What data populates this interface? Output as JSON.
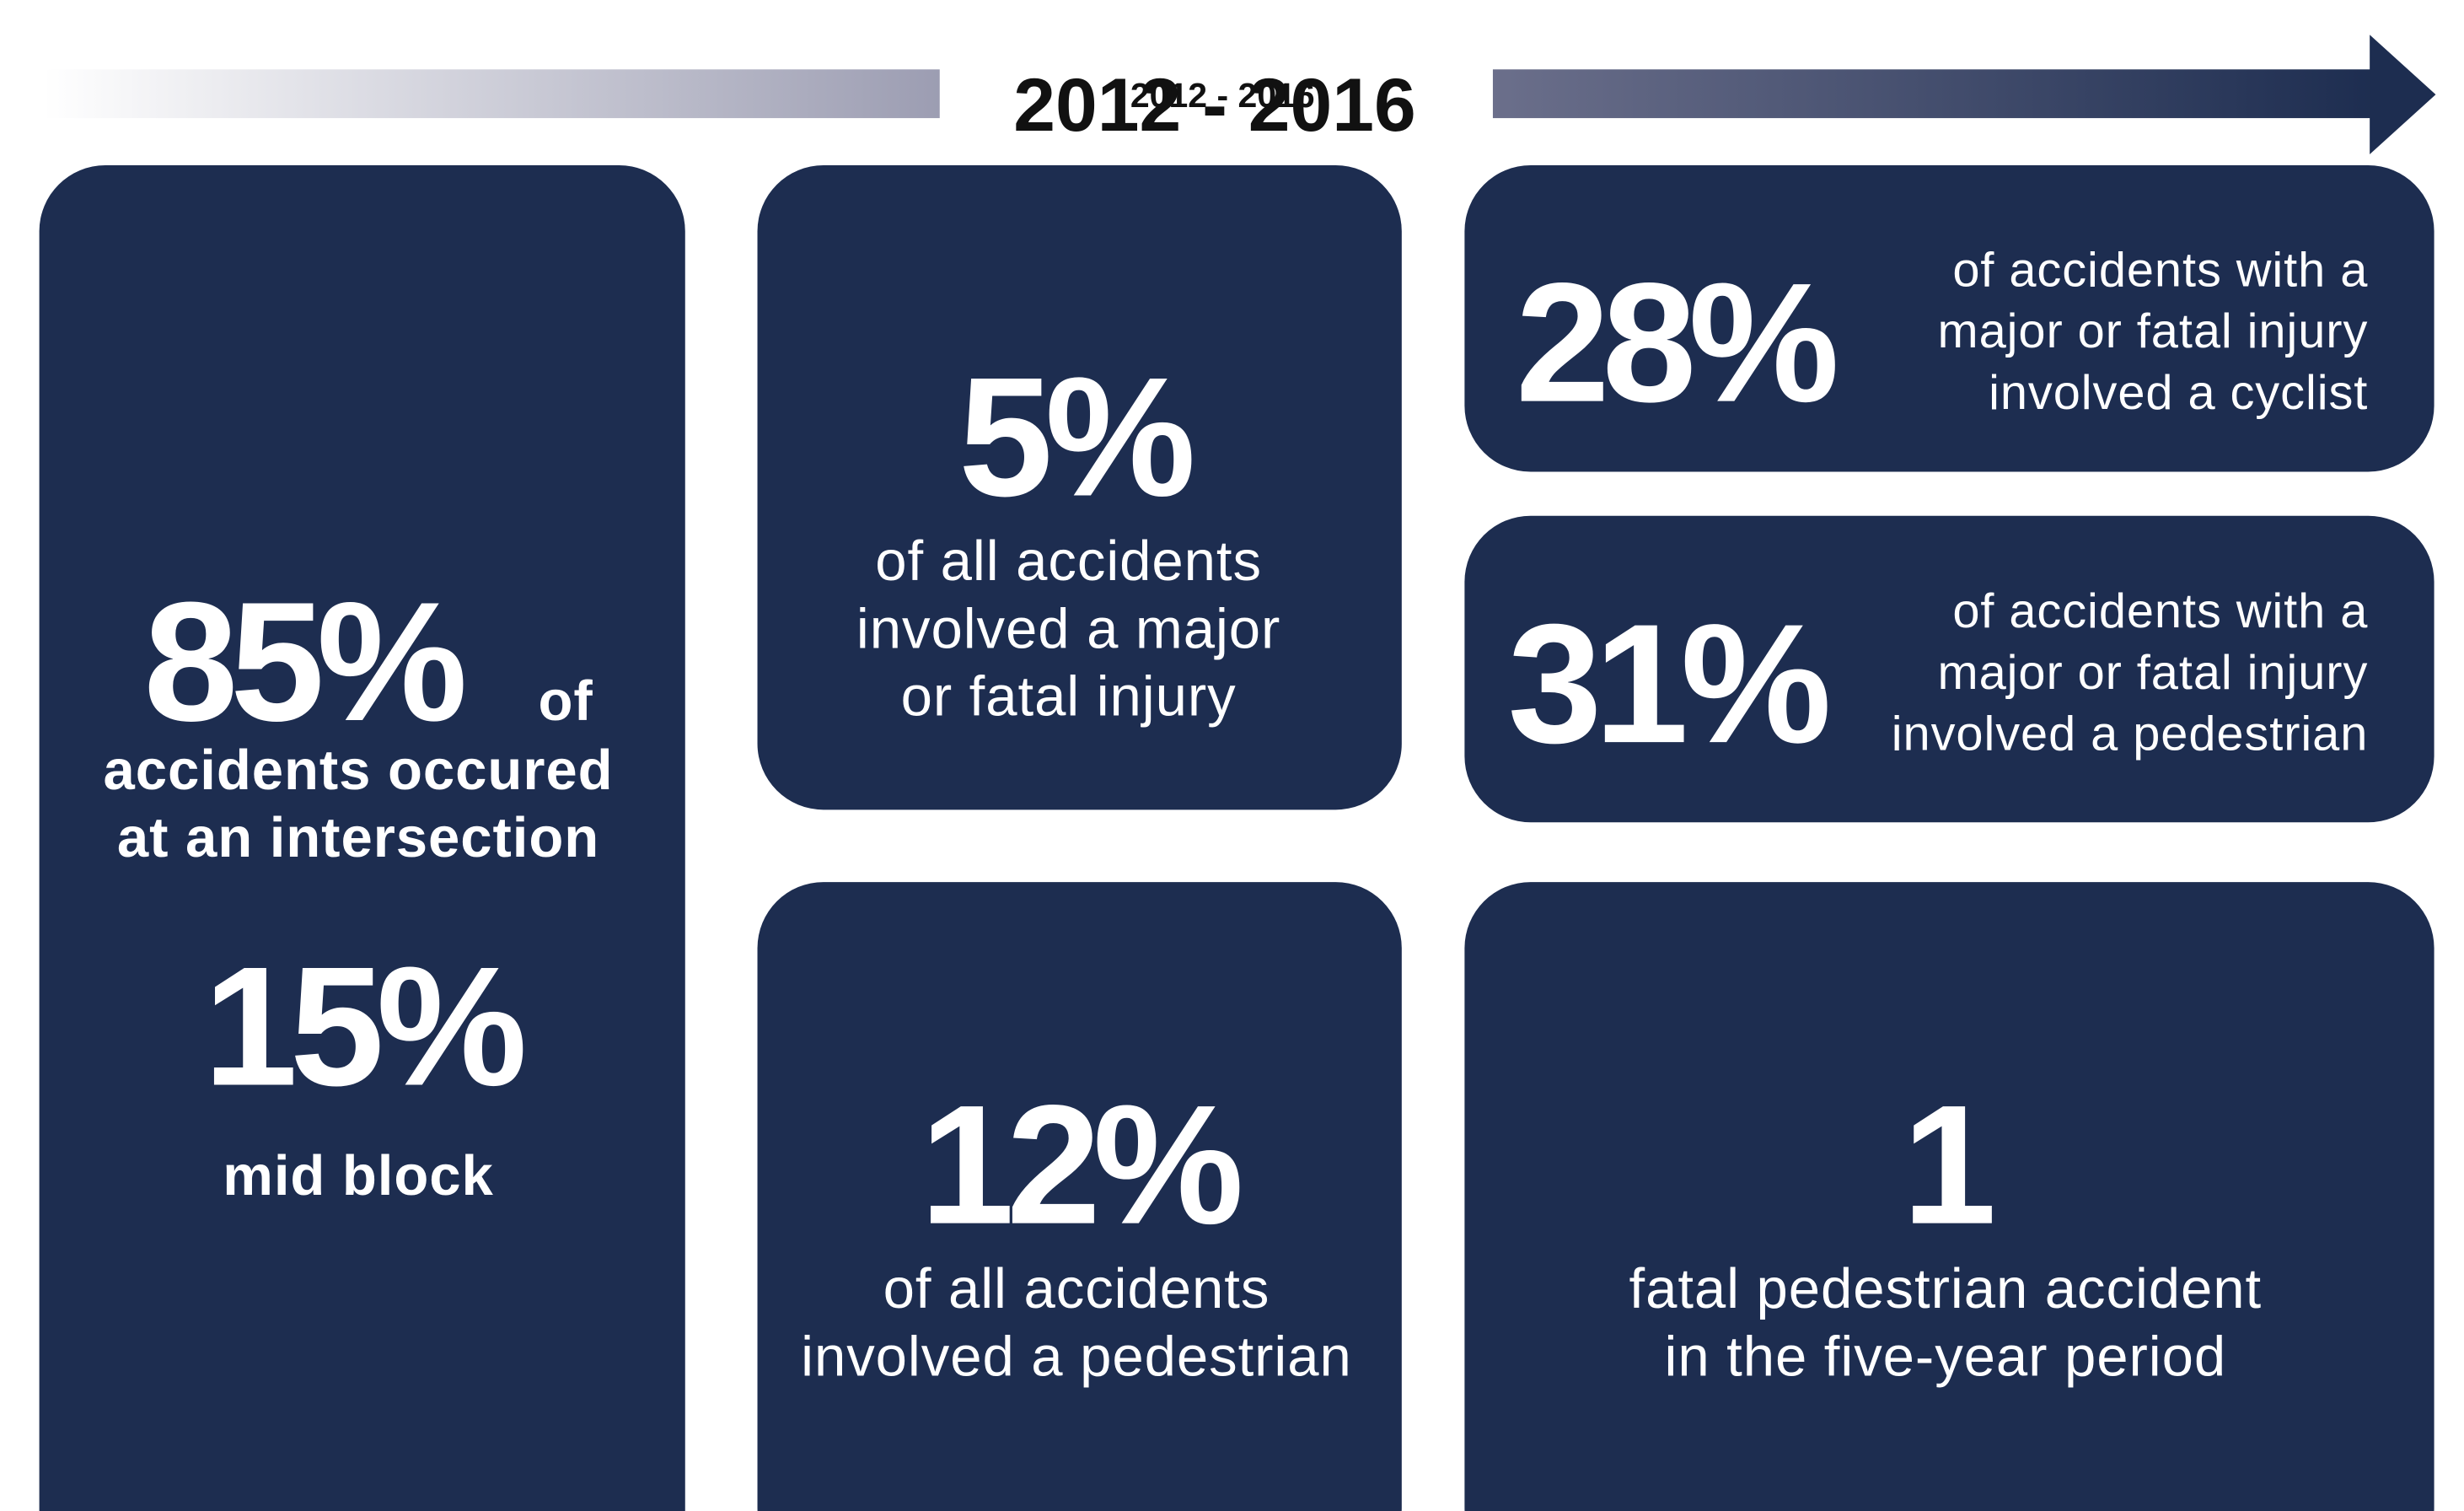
{
  "header": {
    "title": "2012 - 2016"
  },
  "cards": [
    {
      "stat": "85%",
      "stat_suffix": "of",
      "lines": [
        "accidents occured",
        "at an intersection"
      ],
      "stat2": "15%",
      "lines2": [
        "mid block"
      ]
    },
    {
      "stat": "5%",
      "lines": [
        "of all accidents",
        "involved a major",
        "or fatal injury"
      ]
    },
    {
      "stat": "12%",
      "lines": [
        "of all accidents",
        "involved a pedestrian"
      ]
    },
    {
      "stat": "28%",
      "lines": [
        "of accidents with a",
        "major or fatal injury",
        "involved a cyclist"
      ]
    },
    {
      "stat": "31%",
      "lines": [
        "of accidents with a",
        "major or fatal injury",
        "involved a pedestrian"
      ]
    },
    {
      "stat": "1",
      "lines": [
        "fatal pedestrian accident",
        "in the five-year period"
      ]
    }
  ]
}
